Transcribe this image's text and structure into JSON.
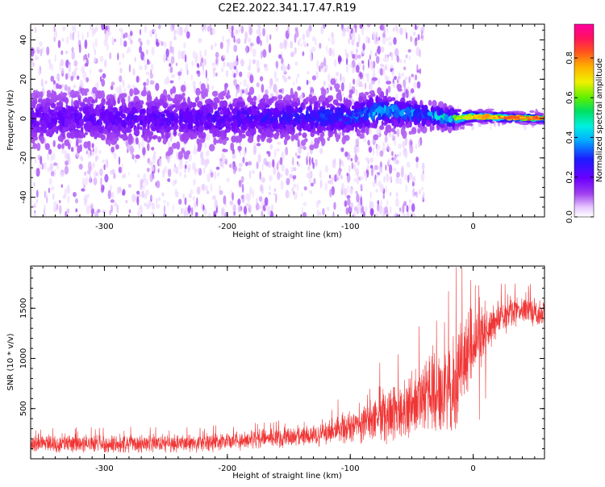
{
  "title": "C2E2.2022.341.17.47.R19",
  "chart_data": [
    {
      "type": "heatmap",
      "name": "spectrogram",
      "xlabel": "Height of straight line (km)",
      "ylabel": "Frequency (Hz)",
      "xlim": [
        -360,
        58
      ],
      "ylim": [
        -50,
        48
      ],
      "xticks": [
        -300,
        -200,
        -100,
        0
      ],
      "yticks": [
        -40,
        -20,
        0,
        20,
        40
      ],
      "colorbar": {
        "label": "Normalized spectral amplitude",
        "range": [
          0,
          0.97
        ],
        "ticks": [
          0.0,
          0.2,
          0.4,
          0.6,
          0.8
        ],
        "colormap": "rainbow (white -> purple -> blue -> cyan -> green -> yellow -> orange -> red -> magenta)"
      },
      "band_profile": [
        {
          "x": -360,
          "center_hz": 0,
          "halfwidth_hz": 12,
          "peak_amplitude": 0.22
        },
        {
          "x": -200,
          "center_hz": 0,
          "halfwidth_hz": 11,
          "peak_amplitude": 0.25
        },
        {
          "x": -100,
          "center_hz": 1,
          "halfwidth_hz": 9,
          "peak_amplitude": 0.35
        },
        {
          "x": -75,
          "center_hz": 4,
          "halfwidth_hz": 8,
          "peak_amplitude": 0.45
        },
        {
          "x": -40,
          "center_hz": 2,
          "halfwidth_hz": 6,
          "peak_amplitude": 0.42
        },
        {
          "x": -20,
          "center_hz": 0,
          "halfwidth_hz": 5,
          "peak_amplitude": 0.55
        },
        {
          "x": 0,
          "center_hz": 1,
          "halfwidth_hz": 2.5,
          "peak_amplitude": 0.85
        },
        {
          "x": 58,
          "center_hz": 0,
          "halfwidth_hz": 2,
          "peak_amplitude": 0.92
        }
      ],
      "noise_cloud": [
        {
          "x_from": -360,
          "x_to": -100,
          "freq_range_hz": [
            -50,
            48
          ],
          "density": "high"
        },
        {
          "x_from": -100,
          "x_to": -40,
          "freq_range_hz": [
            -50,
            48
          ],
          "density": "moderate"
        },
        {
          "x_from": -40,
          "x_to": 58,
          "freq_range_hz": [
            -5,
            5
          ],
          "density": "low"
        }
      ]
    },
    {
      "type": "line",
      "name": "snr",
      "xlabel": "Height of straight line (km)",
      "ylabel": "SNR (10 * v/v)",
      "xlim": [
        -360,
        58
      ],
      "ylim": [
        0,
        1920
      ],
      "xticks": [
        -300,
        -200,
        -100,
        0
      ],
      "yticks": [
        500,
        1000,
        1500
      ],
      "color": "#f03535",
      "envelope": [
        {
          "x": -360,
          "base": 150,
          "spread": 110
        },
        {
          "x": -250,
          "base": 150,
          "spread": 110
        },
        {
          "x": -200,
          "base": 170,
          "spread": 110
        },
        {
          "x": -150,
          "base": 210,
          "spread": 120
        },
        {
          "x": -120,
          "base": 250,
          "spread": 140
        },
        {
          "x": -100,
          "base": 300,
          "spread": 180
        },
        {
          "x": -80,
          "base": 420,
          "spread": 300
        },
        {
          "x": -60,
          "base": 500,
          "spread": 380
        },
        {
          "x": -40,
          "base": 600,
          "spread": 450
        },
        {
          "x": -20,
          "base": 700,
          "spread": 600
        },
        {
          "x": -10,
          "base": 950,
          "spread": 650
        },
        {
          "x": 0,
          "base": 1100,
          "spread": 420
        },
        {
          "x": 10,
          "base": 1250,
          "spread": 300
        },
        {
          "x": 20,
          "base": 1400,
          "spread": 220
        },
        {
          "x": 40,
          "base": 1500,
          "spread": 180
        },
        {
          "x": 58,
          "base": 1450,
          "spread": 160
        }
      ],
      "notable_points": [
        {
          "x": -110,
          "y": 590
        },
        {
          "x": -76,
          "y": 960
        },
        {
          "x": -61,
          "y": 1040
        },
        {
          "x": -44,
          "y": 1320
        },
        {
          "x": -20,
          "y": 1670
        },
        {
          "x": -14,
          "y": 1910
        },
        {
          "x": -9,
          "y": 1900
        },
        {
          "x": -2,
          "y": 1780
        },
        {
          "x": 5,
          "y": 390
        },
        {
          "x": 10,
          "y": 600
        }
      ]
    }
  ]
}
